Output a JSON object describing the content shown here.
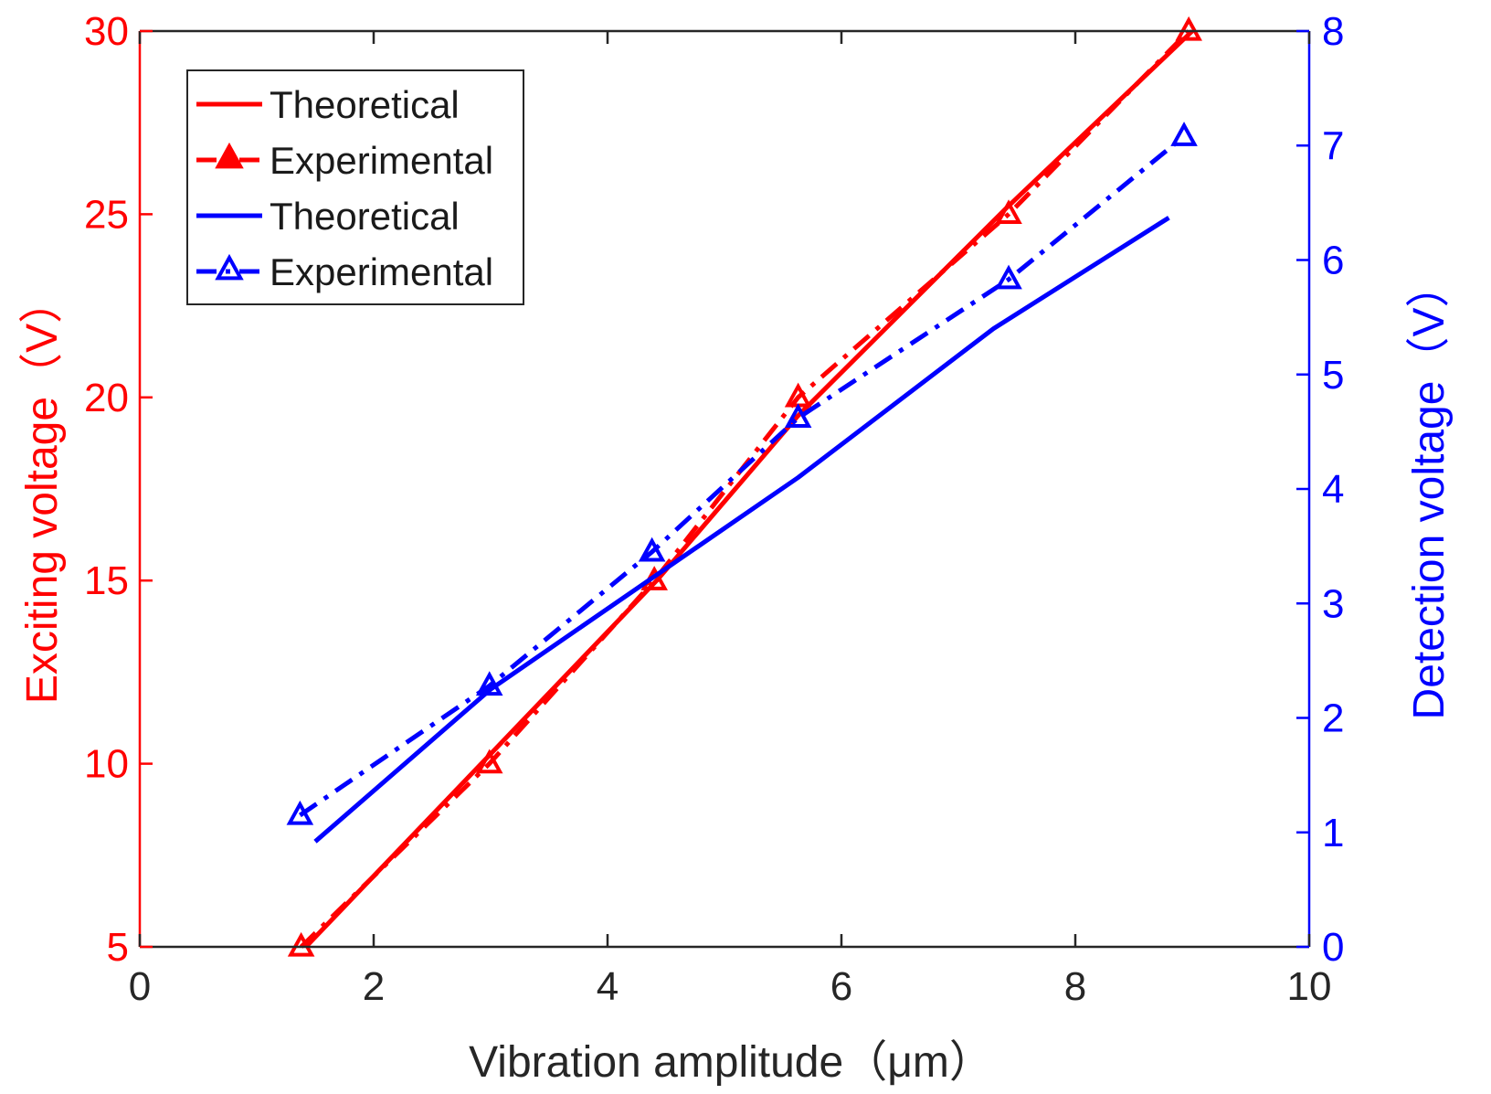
{
  "chart_data": {
    "type": "line",
    "title": "",
    "xlabel": "Vibration amplitude（μm）",
    "ylabel_left": "Exciting voltage（V）",
    "ylabel_right": "Detection voltage（V）",
    "xlim": [
      0,
      10
    ],
    "ylim_left": [
      5,
      30
    ],
    "ylim_right": [
      0,
      8
    ],
    "x_ticks": [
      "0",
      "2",
      "4",
      "6",
      "8",
      "10"
    ],
    "y_left_ticks": [
      "5",
      "10",
      "15",
      "20",
      "25",
      "30"
    ],
    "y_right_ticks": [
      "0",
      "1",
      "2",
      "3",
      "4",
      "5",
      "6",
      "7",
      "8"
    ],
    "grid": false,
    "legend_position": "top-left",
    "series": [
      {
        "name": "Theoretical",
        "axis": "left",
        "color": "#ff0000",
        "line_style": "solid",
        "marker": "none",
        "x": [
          1.42,
          4.42,
          5.63,
          7.42,
          9.0
        ],
        "y": [
          5.0,
          15.0,
          19.5,
          25.2,
          30.0
        ]
      },
      {
        "name": "Experimental",
        "axis": "left",
        "color": "#ff0000",
        "line_style": "dashdot",
        "marker": "triangle",
        "x": [
          1.38,
          2.99,
          4.4,
          5.63,
          7.43,
          8.97
        ],
        "y": [
          5.0,
          10.0,
          15.0,
          20.0,
          25.0,
          30.0
        ]
      },
      {
        "name": "Theoretical",
        "axis": "right",
        "color": "#0000ff",
        "line_style": "solid",
        "marker": "none",
        "x": [
          1.5,
          3.0,
          4.35,
          5.63,
          7.3,
          8.8
        ],
        "y": [
          0.92,
          2.25,
          3.2,
          4.1,
          5.4,
          6.37
        ]
      },
      {
        "name": "Experimental",
        "axis": "right",
        "color": "#0000ff",
        "line_style": "dashdot",
        "marker": "triangle",
        "x": [
          1.37,
          2.99,
          4.38,
          5.63,
          7.43,
          8.93
        ],
        "y": [
          1.15,
          2.28,
          3.45,
          4.62,
          5.83,
          7.08
        ]
      }
    ]
  }
}
